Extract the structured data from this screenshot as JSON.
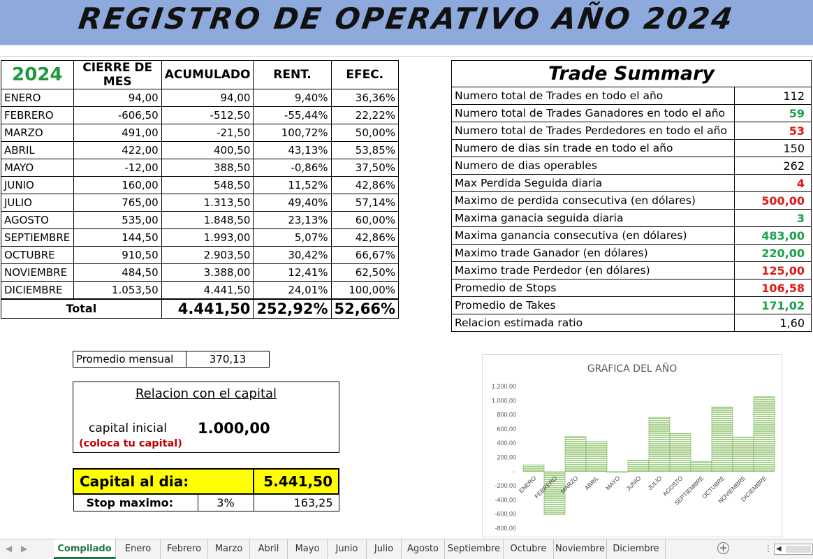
{
  "title": "REGISTRO DE OPERATIVO AÑO 2024",
  "monthly": {
    "headers": [
      "2024",
      "CIERRE DE MES",
      "ACUMULADO",
      "RENT.",
      "EFEC."
    ],
    "rows": [
      {
        "month": "ENERO",
        "cierre": "94,00",
        "acumulado": "94,00",
        "rent": "9,40%",
        "efec": "36,36%"
      },
      {
        "month": "FEBRERO",
        "cierre": "-606,50",
        "acumulado": "-512,50",
        "rent": "-55,44%",
        "efec": "22,22%"
      },
      {
        "month": "MARZO",
        "cierre": "491,00",
        "acumulado": "-21,50",
        "rent": "100,72%",
        "efec": "50,00%"
      },
      {
        "month": "ABRIL",
        "cierre": "422,00",
        "acumulado": "400,50",
        "rent": "43,13%",
        "efec": "53,85%"
      },
      {
        "month": "MAYO",
        "cierre": "-12,00",
        "acumulado": "388,50",
        "rent": "-0,86%",
        "efec": "37,50%"
      },
      {
        "month": "JUNIO",
        "cierre": "160,00",
        "acumulado": "548,50",
        "rent": "11,52%",
        "efec": "42,86%"
      },
      {
        "month": "JULIO",
        "cierre": "765,00",
        "acumulado": "1.313,50",
        "rent": "49,40%",
        "efec": "57,14%"
      },
      {
        "month": "AGOSTO",
        "cierre": "535,00",
        "acumulado": "1.848,50",
        "rent": "23,13%",
        "efec": "60,00%"
      },
      {
        "month": "SEPTIEMBRE",
        "cierre": "144,50",
        "acumulado": "1.993,00",
        "rent": "5,07%",
        "efec": "42,86%"
      },
      {
        "month": "OCTUBRE",
        "cierre": "910,50",
        "acumulado": "2.903,50",
        "rent": "30,42%",
        "efec": "66,67%"
      },
      {
        "month": "NOVIEMBRE",
        "cierre": "484,50",
        "acumulado": "3.388,00",
        "rent": "12,41%",
        "efec": "62,50%"
      },
      {
        "month": "DICIEMBRE",
        "cierre": "1.053,50",
        "acumulado": "4.441,50",
        "rent": "24,01%",
        "efec": "100,00%"
      }
    ],
    "total": {
      "label": "Total",
      "acumulado": "4.441,50",
      "rent": "252,92%",
      "efec": "52,66%"
    }
  },
  "summary": {
    "title": "Trade Summary",
    "rows": [
      {
        "label": "Numero total de Trades en todo el año",
        "value": "112",
        "color": "black"
      },
      {
        "label": "Numero total de Trades Ganadores en todo el año",
        "value": "59",
        "color": "green"
      },
      {
        "label": "Numero total de Trades Perdedores en todo el año",
        "value": "53",
        "color": "red"
      },
      {
        "label": "Numero de dias sin trade en todo el año",
        "value": "150",
        "color": "black"
      },
      {
        "label": "Numero de dias operables",
        "value": "262",
        "color": "black"
      },
      {
        "label": "Max Perdida Seguida diaria",
        "value": "4",
        "color": "red"
      },
      {
        "label": "Maximo de perdida consecutiva (en dólares)",
        "value": "500,00",
        "color": "red"
      },
      {
        "label": "Maxima ganacia seguida diaria",
        "value": "3",
        "color": "green"
      },
      {
        "label": "Maxima ganancia consecutiva (en dólares)",
        "value": "483,00",
        "color": "green"
      },
      {
        "label": "Maximo trade Ganador (en dólares)",
        "value": "220,00",
        "color": "green"
      },
      {
        "label": "Maximo trade Perdedor  (en dólares)",
        "value": "125,00",
        "color": "red"
      },
      {
        "label": "Promedio de Stops",
        "value": "106,58",
        "color": "red"
      },
      {
        "label": "Promedio de Takes",
        "value": "171,02",
        "color": "green"
      },
      {
        "label": "Relacion estimada ratio",
        "value": "1,60",
        "color": "black"
      }
    ]
  },
  "promedio": {
    "label": "Promedio mensual",
    "value": "370,13"
  },
  "capital": {
    "heading": "Relacion con el capital",
    "label": "capital inicial",
    "value": "1.000,00",
    "hint": "(coloca tu capital)"
  },
  "capital_dia": {
    "label": "Capital al dia:",
    "value": "5.441,50"
  },
  "stop": {
    "label": "Stop maximo:",
    "percent": "3%",
    "value": "163,25"
  },
  "colors": {
    "banner": "#8ea9db",
    "green": "#1aa04a",
    "red": "#e01818",
    "bar_fill": "#a9d18e",
    "bar_stroke": "#70ad47",
    "highlight": "#ffff00"
  },
  "chart_data": {
    "type": "bar",
    "title": "GRAFICA DEL AÑO",
    "categories": [
      "ENERO",
      "FEBRERO",
      "MARZO",
      "ABRIL",
      "MAYO",
      "JUNIO",
      "JULIO",
      "AGOSTO",
      "SEPTIEMBRE",
      "OCTUBRE",
      "NOVIEMBRE",
      "DICIEMBRE"
    ],
    "values": [
      94,
      -606.5,
      491,
      422,
      -12,
      160,
      765,
      535,
      144.5,
      910.5,
      484.5,
      1053.5
    ],
    "ylim": [
      -800,
      1200
    ],
    "yticks": [
      "1.200,00",
      "1.000,00",
      "800,00",
      "600,00",
      "400,00",
      "200,00",
      "-",
      "-200,00",
      "-400,00",
      "-600,00",
      "-800,00"
    ],
    "xlabel": "",
    "ylabel": "",
    "grid": false
  },
  "sheets": {
    "tabs": [
      "Compilado",
      "Enero",
      "Febrero",
      "Marzo",
      "Abril",
      "Mayo",
      "Junio",
      "Julio",
      "Agosto",
      "Septiembre",
      "Octubre",
      "Noviembre",
      "Diciembre"
    ],
    "active": "Compilado",
    "add_icon": "plus-icon"
  }
}
